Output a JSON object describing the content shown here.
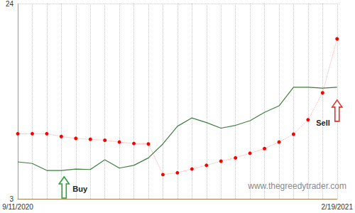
{
  "chart_data": {
    "type": "line",
    "categories": [
      "9/11/2020",
      null,
      null,
      null,
      null,
      null,
      null,
      null,
      null,
      null,
      null,
      null,
      null,
      null,
      null,
      null,
      null,
      null,
      null,
      null,
      null,
      null,
      "2/19/2021"
    ],
    "series": [
      {
        "color": "#3d7f3d",
        "line_style": "solid",
        "marker": "none",
        "values": [
          6.97,
          6.8,
          6.05,
          6.05,
          6.2,
          6.15,
          7.2,
          6.3,
          6.6,
          7.4,
          8.9,
          10.8,
          11.7,
          11.2,
          10.6,
          10.9,
          11.4,
          12.3,
          13.0,
          15.0,
          15.0,
          14.9,
          15.0
        ]
      },
      {
        "color": "#ff0000",
        "line_style": "dotted",
        "marker": "circle",
        "values": [
          10.0,
          10.0,
          10.0,
          9.7,
          9.5,
          9.4,
          9.3,
          9.1,
          8.95,
          8.9,
          5.6,
          5.8,
          6.2,
          6.6,
          7.05,
          7.4,
          7.9,
          8.4,
          9.1,
          9.95,
          11.5,
          14.4,
          20.2
        ]
      }
    ],
    "ylim": [
      3,
      24
    ],
    "yticks": [
      3,
      24
    ],
    "grid": true,
    "annotations": [
      {
        "text": "Buy",
        "index": 3,
        "color": "#2e9e3e"
      },
      {
        "text": "Sell",
        "index": 22,
        "color": "#e03030"
      },
      {
        "text": "www.thegreedytrader.com"
      }
    ]
  }
}
